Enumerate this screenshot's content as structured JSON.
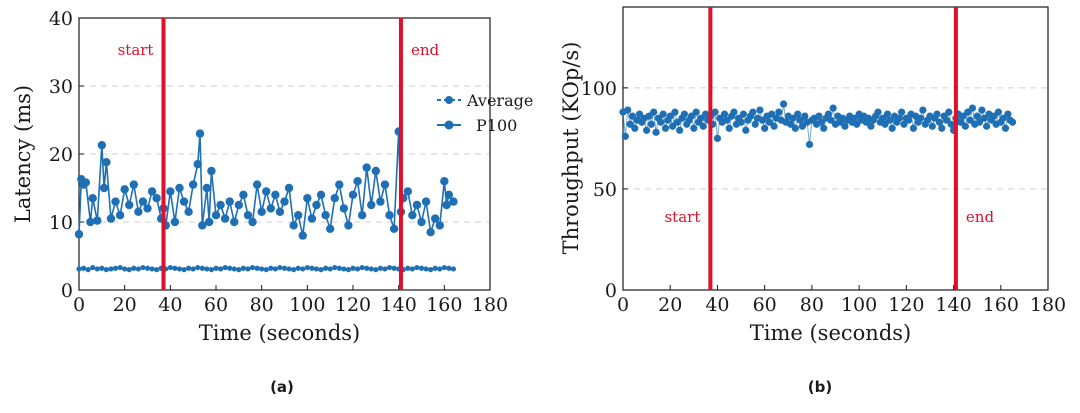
{
  "colors": {
    "series": "#1f6fb5",
    "marker": "#e0102b",
    "grid": "#d0d0d0",
    "axis": "#1a1a1a"
  },
  "chart_data": [
    {
      "type": "line",
      "caption": "(a)",
      "xlabel": "Time (seconds)",
      "ylabel": "Latency (ms)",
      "xlim": [
        0,
        180
      ],
      "ylim": [
        0,
        40
      ],
      "xticks": [
        0,
        20,
        40,
        60,
        80,
        100,
        120,
        140,
        160,
        180
      ],
      "yticks": [
        0,
        10,
        20,
        30,
        40
      ],
      "grid": "horizontal dashed",
      "legend": {
        "placement": "right",
        "entries": [
          "Average",
          "P100"
        ]
      },
      "vlines": [
        {
          "x": 37,
          "label": "start"
        },
        {
          "x": 141,
          "label": "end"
        }
      ],
      "series": [
        {
          "name": "Average",
          "x": [
            0,
            2,
            4,
            6,
            8,
            10,
            12,
            14,
            16,
            18,
            20,
            22,
            24,
            26,
            28,
            30,
            32,
            34,
            36,
            38,
            40,
            42,
            44,
            46,
            48,
            50,
            52,
            54,
            56,
            58,
            60,
            62,
            64,
            66,
            68,
            70,
            72,
            74,
            76,
            78,
            80,
            82,
            84,
            86,
            88,
            90,
            92,
            94,
            96,
            98,
            100,
            102,
            104,
            106,
            108,
            110,
            112,
            114,
            116,
            118,
            120,
            122,
            124,
            126,
            128,
            130,
            132,
            134,
            136,
            138,
            140,
            142,
            144,
            146,
            148,
            150,
            152,
            154,
            156,
            158,
            160,
            162,
            164
          ],
          "values": [
            3.1,
            3.2,
            3.0,
            3.3,
            3.1,
            3.2,
            3.0,
            3.1,
            3.2,
            3.3,
            3.1,
            3.0,
            3.2,
            3.1,
            3.3,
            3.2,
            3.1,
            3.0,
            3.2,
            3.1,
            3.3,
            3.2,
            3.1,
            3.0,
            3.2,
            3.1,
            3.3,
            3.2,
            3.1,
            3.0,
            3.2,
            3.1,
            3.3,
            3.2,
            3.1,
            3.0,
            3.2,
            3.1,
            3.3,
            3.2,
            3.1,
            3.0,
            3.2,
            3.1,
            3.3,
            3.2,
            3.1,
            3.0,
            3.2,
            3.1,
            3.3,
            3.2,
            3.1,
            3.0,
            3.2,
            3.1,
            3.3,
            3.2,
            3.1,
            3.0,
            3.2,
            3.1,
            3.3,
            3.2,
            3.1,
            3.0,
            3.2,
            3.1,
            3.3,
            3.2,
            3.1,
            3.0,
            3.2,
            3.1,
            3.3,
            3.2,
            3.1,
            3.0,
            3.2,
            3.1,
            3.3,
            3.2,
            3.1
          ]
        },
        {
          "name": "P100",
          "x": [
            0,
            1,
            2,
            3,
            5,
            6,
            8,
            10,
            11,
            12,
            14,
            16,
            18,
            20,
            22,
            24,
            26,
            28,
            30,
            32,
            34,
            36,
            37,
            38,
            40,
            42,
            44,
            46,
            48,
            50,
            52,
            53,
            54,
            56,
            57,
            58,
            60,
            62,
            64,
            66,
            68,
            70,
            72,
            74,
            76,
            78,
            80,
            82,
            84,
            86,
            88,
            90,
            92,
            94,
            96,
            98,
            100,
            102,
            104,
            106,
            108,
            110,
            112,
            114,
            116,
            118,
            120,
            122,
            124,
            126,
            128,
            130,
            132,
            134,
            136,
            138,
            140,
            141,
            142,
            144,
            146,
            148,
            150,
            152,
            154,
            156,
            158,
            160,
            161,
            162,
            164
          ],
          "values": [
            8.2,
            16.3,
            15.5,
            15.8,
            10.0,
            13.5,
            10.2,
            21.3,
            15.0,
            18.8,
            10.5,
            13.0,
            11.0,
            14.8,
            12.5,
            15.5,
            11.5,
            13.0,
            12.0,
            14.5,
            13.5,
            10.5,
            12.0,
            9.5,
            14.5,
            10.0,
            15.0,
            13.0,
            11.5,
            15.5,
            18.5,
            23.0,
            9.5,
            15.0,
            10.0,
            17.5,
            11.0,
            12.5,
            10.5,
            13.0,
            10.0,
            12.5,
            14.0,
            11.0,
            10.0,
            15.5,
            11.5,
            14.5,
            12.0,
            14.0,
            11.5,
            13.0,
            15.0,
            9.5,
            11.0,
            8.0,
            13.5,
            10.5,
            12.5,
            14.0,
            11.0,
            9.0,
            13.5,
            15.5,
            12.0,
            9.5,
            14.0,
            16.0,
            11.0,
            18.0,
            12.5,
            17.5,
            13.0,
            15.5,
            11.0,
            9.0,
            23.3,
            11.5,
            13.5,
            14.5,
            11.0,
            12.5,
            10.0,
            13.0,
            8.5,
            10.5,
            9.5,
            16.0,
            12.5,
            14.0,
            13.0
          ]
        }
      ]
    },
    {
      "type": "scatter",
      "caption": "(b)",
      "xlabel": "Time (seconds)",
      "ylabel": "Throughput (KOp/s)",
      "xlim": [
        0,
        180
      ],
      "ylim": [
        0,
        140
      ],
      "xticks": [
        0,
        20,
        40,
        60,
        80,
        100,
        120,
        140,
        160,
        180
      ],
      "yticks": [
        0,
        50,
        100
      ],
      "grid": "horizontal dashed",
      "vlines": [
        {
          "x": 37,
          "label": "start"
        },
        {
          "x": 141,
          "label": "end"
        }
      ],
      "series": [
        {
          "name": "Throughput",
          "x": [
            0,
            1,
            2,
            3,
            4,
            5,
            6,
            7,
            8,
            9,
            10,
            11,
            12,
            13,
            14,
            15,
            16,
            17,
            18,
            19,
            20,
            21,
            22,
            23,
            24,
            25,
            26,
            27,
            28,
            29,
            30,
            31,
            32,
            33,
            34,
            35,
            36,
            37,
            38,
            39,
            40,
            41,
            42,
            43,
            44,
            45,
            46,
            47,
            48,
            49,
            50,
            51,
            52,
            53,
            54,
            55,
            56,
            57,
            58,
            59,
            60,
            61,
            62,
            63,
            64,
            65,
            66,
            67,
            68,
            69,
            70,
            71,
            72,
            73,
            74,
            75,
            76,
            77,
            78,
            79,
            80,
            81,
            82,
            83,
            84,
            85,
            86,
            87,
            88,
            89,
            90,
            91,
            92,
            93,
            94,
            95,
            96,
            97,
            98,
            99,
            100,
            101,
            102,
            103,
            104,
            105,
            106,
            107,
            108,
            109,
            110,
            111,
            112,
            113,
            114,
            115,
            116,
            117,
            118,
            119,
            120,
            121,
            122,
            123,
            124,
            125,
            126,
            127,
            128,
            129,
            130,
            131,
            132,
            133,
            134,
            135,
            136,
            137,
            138,
            139,
            140,
            141,
            142,
            143,
            144,
            145,
            146,
            147,
            148,
            149,
            150,
            151,
            152,
            153,
            154,
            155,
            156,
            157,
            158,
            159,
            160,
            161,
            162,
            163,
            164,
            165
          ],
          "values": [
            88,
            76,
            89,
            82,
            86,
            80,
            84,
            87,
            83,
            85,
            79,
            86,
            82,
            88,
            78,
            85,
            83,
            87,
            80,
            84,
            86,
            81,
            88,
            83,
            79,
            85,
            87,
            82,
            84,
            86,
            80,
            88,
            83,
            85,
            81,
            87,
            84,
            86,
            82,
            88,
            75,
            85,
            83,
            87,
            84,
            80,
            86,
            88,
            82,
            85,
            83,
            87,
            79,
            84,
            86,
            88,
            82,
            85,
            89,
            84,
            80,
            86,
            83,
            87,
            81,
            85,
            88,
            84,
            92,
            83,
            86,
            82,
            85,
            80,
            87,
            84,
            81,
            86,
            83,
            72,
            84,
            85,
            82,
            86,
            83,
            80,
            85,
            87,
            84,
            90,
            82,
            86,
            83,
            85,
            81,
            84,
            86,
            83,
            85,
            82,
            87,
            84,
            86,
            83,
            85,
            81,
            84,
            86,
            88,
            83,
            85,
            82,
            87,
            84,
            80,
            86,
            83,
            85,
            88,
            82,
            85,
            84,
            87,
            80,
            86,
            83,
            85,
            89,
            82,
            84,
            86,
            81,
            85,
            87,
            83,
            80,
            86,
            84,
            88,
            82,
            79,
            85,
            87,
            83,
            86,
            81,
            88,
            84,
            90,
            82,
            86,
            83,
            89,
            85,
            81,
            87,
            84,
            86,
            82,
            88,
            83,
            85,
            80,
            87,
            84,
            83
          ]
        }
      ]
    }
  ]
}
